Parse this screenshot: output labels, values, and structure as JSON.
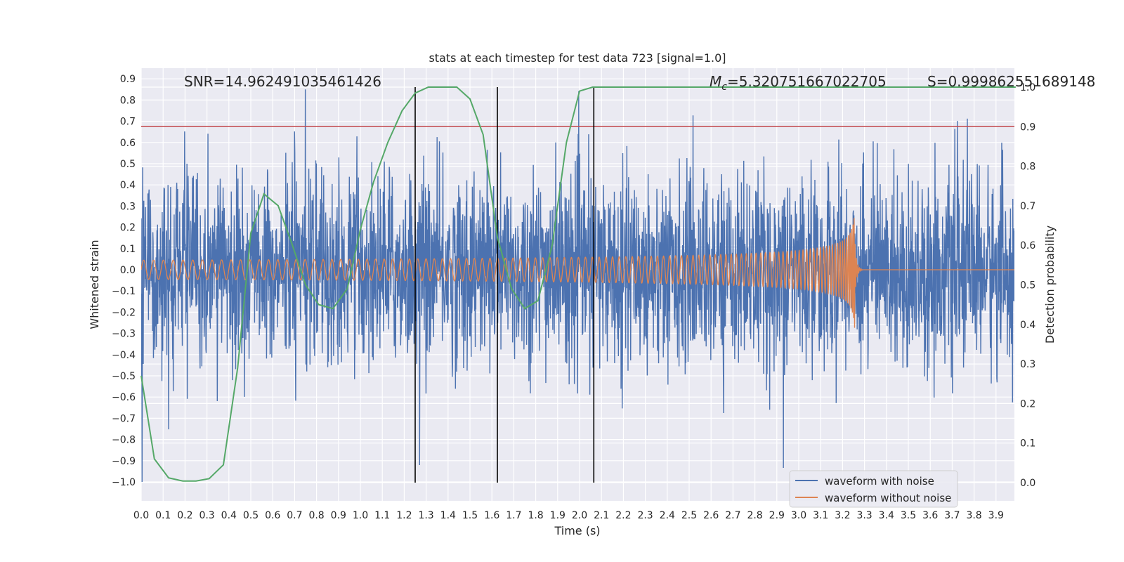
{
  "chart_data": {
    "type": "line",
    "title": "stats at each timestep for test data 723 [signal=1.0]",
    "xlabel": "Time (s)",
    "ylabel_left": "Whitened strain",
    "ylabel_right": "Detection probability",
    "xlim": [
      0.0,
      3.99
    ],
    "ylim_left": [
      -1.0,
      0.9
    ],
    "ylim_right": [
      0.0,
      1.0
    ],
    "x_ticks": [
      "0.0",
      "0.1",
      "0.2",
      "0.3",
      "0.4",
      "0.5",
      "0.6",
      "0.7",
      "0.8",
      "0.9",
      "1.0",
      "1.1",
      "1.2",
      "1.3",
      "1.4",
      "1.5",
      "1.6",
      "1.7",
      "1.8",
      "1.9",
      "2.0",
      "2.1",
      "2.2",
      "2.3",
      "2.4",
      "2.5",
      "2.6",
      "2.7",
      "2.8",
      "2.9",
      "3.0",
      "3.1",
      "3.2",
      "3.3",
      "3.4",
      "3.5",
      "3.6",
      "3.7",
      "3.8",
      "3.9"
    ],
    "y_ticks_left": [
      "0.9",
      "0.8",
      "0.7",
      "0.6",
      "0.5",
      "0.4",
      "0.3",
      "0.2",
      "0.1",
      "0.0",
      "−0.1",
      "−0.2",
      "−0.3",
      "−0.4",
      "−0.5",
      "−0.6",
      "−0.7",
      "−0.8",
      "−0.9",
      "−1.0"
    ],
    "y_ticks_right": [
      "1.0",
      "0.9",
      "0.8",
      "0.7",
      "0.6",
      "0.5",
      "0.4",
      "0.3",
      "0.2",
      "0.1",
      "0.0"
    ],
    "annotations": {
      "snr": "SNR=14.962491035461426",
      "mc_symbol": "M",
      "mc_sub": "c",
      "mc_value": "=5.320751667022705",
      "s": "S=0.999862551689148"
    },
    "threshold": {
      "value": 0.9,
      "axis": "right",
      "color": "#c44e52"
    },
    "vertical_markers": [
      1.25,
      1.625,
      2.065
    ],
    "series": [
      {
        "name": "waveform with noise",
        "color": "#4c72b0",
        "axis": "left",
        "kind": "noise",
        "approx_std": 0.22,
        "approx_range": [
          -1.0,
          0.85
        ]
      },
      {
        "name": "waveform without noise",
        "color": "#dd8452",
        "axis": "left",
        "kind": "chirp",
        "merger_time": 3.26,
        "start_amplitude": 0.045,
        "peak_amplitude": 0.3,
        "start_frequency_hz": 22
      },
      {
        "name": "",
        "color": "#55a868",
        "axis": "right",
        "kind": "probability",
        "x": [
          0.0,
          0.06,
          0.125,
          0.19,
          0.25,
          0.31,
          0.375,
          0.44,
          0.5,
          0.56,
          0.625,
          0.69,
          0.75,
          0.81,
          0.875,
          0.94,
          1.0,
          1.06,
          1.125,
          1.19,
          1.25,
          1.31,
          1.375,
          1.44,
          1.5,
          1.56,
          1.625,
          1.69,
          1.75,
          1.81,
          1.875,
          1.94,
          2.0,
          2.06,
          2.125,
          2.19,
          2.25,
          3.99
        ],
        "y": [
          0.27,
          0.06,
          0.012,
          0.004,
          0.004,
          0.01,
          0.045,
          0.29,
          0.63,
          0.73,
          0.7,
          0.6,
          0.5,
          0.45,
          0.44,
          0.49,
          0.64,
          0.76,
          0.86,
          0.94,
          0.985,
          1.0,
          1.0,
          1.0,
          0.97,
          0.88,
          0.62,
          0.49,
          0.44,
          0.46,
          0.6,
          0.86,
          0.99,
          1.0,
          1.0,
          1.0,
          1.0,
          1.0
        ]
      }
    ],
    "legend": {
      "placement": "lower-right"
    },
    "grid": true
  }
}
